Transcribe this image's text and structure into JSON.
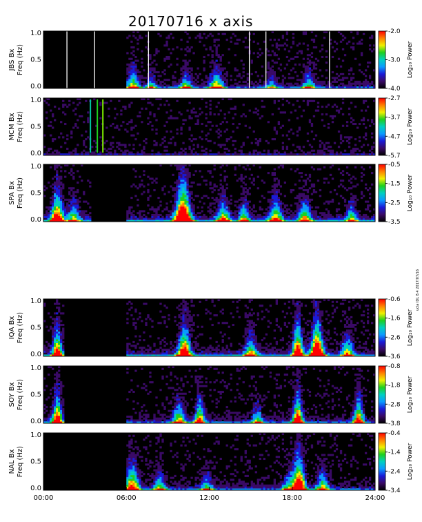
{
  "title": "20170716 x axis",
  "credit": "ucla IDL 8.4 2017/07/16",
  "colorbar_label": "Log₁₀ Power",
  "x_axis": {
    "ticks": [
      "00:00",
      "06:00",
      "12:00",
      "18:00",
      "24:00"
    ],
    "range_hours": [
      0,
      24
    ]
  },
  "colormap": [
    "#000000",
    "#3a0a66",
    "#1a1ad8",
    "#0a9aff",
    "#00d0c0",
    "#1ed01e",
    "#f0f000",
    "#ff8000",
    "#ff0000"
  ],
  "chart_data": [
    {
      "type": "heatmap",
      "station": "JBS",
      "ylabel": "JBS Bx",
      "ylabel2": "Freq (Hz)",
      "y_ticks": [
        "0.0",
        "0.5",
        "1.0"
      ],
      "ylim": [
        0,
        1
      ],
      "colorbar": {
        "min": -4.0,
        "max": -2.0,
        "ticks": [
          "-2.0",
          "-3.0",
          "-4.0"
        ]
      },
      "gaps_hours": [
        0,
        6
      ],
      "background_level": 0.12,
      "bursts": [
        {
          "t": 6.5,
          "width": 0.5,
          "amp": 0.55
        },
        {
          "t": 7.8,
          "width": 0.4,
          "amp": 0.4
        },
        {
          "t": 10.3,
          "width": 0.5,
          "amp": 0.45
        },
        {
          "t": 12.5,
          "width": 0.6,
          "amp": 0.55
        },
        {
          "t": 16.5,
          "width": 0.5,
          "amp": 0.35
        },
        {
          "t": 19.2,
          "width": 0.5,
          "amp": 0.45
        }
      ],
      "data_gaps_lines_hours": [
        1.7,
        3.7,
        7.6,
        14.9,
        16.1,
        20.7
      ]
    },
    {
      "type": "heatmap",
      "station": "MCM",
      "ylabel": "MCM Bx",
      "ylabel2": "Freq (Hz)",
      "y_ticks": [
        "0.0",
        "0.5",
        "1.0"
      ],
      "ylim": [
        0,
        1
      ],
      "colorbar": {
        "min": -5.7,
        "max": -2.7,
        "ticks": [
          "-2.7",
          "-3.7",
          "-4.7",
          "-5.7"
        ]
      },
      "gaps_hours": [],
      "background_level": 0.06,
      "bursts": [],
      "spike_lines": [
        {
          "t": 3.4,
          "color": "#00c8a0"
        },
        {
          "t": 3.9,
          "color": "#1ed01e"
        },
        {
          "t": 4.3,
          "color": "#7ff000"
        }
      ]
    },
    {
      "type": "heatmap",
      "station": "SPA",
      "ylabel": "SPA Bx",
      "ylabel2": "Freq (Hz)",
      "y_ticks": [
        "0.0",
        "0.5",
        "1.0"
      ],
      "ylim": [
        0,
        1
      ],
      "colorbar": {
        "min": -3.5,
        "max": -0.5,
        "ticks": [
          "-0.5",
          "-1.5",
          "-2.5",
          "-3.5"
        ]
      },
      "gaps_hours": [
        3.5,
        6
      ],
      "background_level": 0.22,
      "bursts": [
        {
          "t": 1.0,
          "width": 0.5,
          "amp": 0.75
        },
        {
          "t": 2.2,
          "width": 0.4,
          "amp": 0.45
        },
        {
          "t": 10.1,
          "width": 0.6,
          "amp": 1.0
        },
        {
          "t": 13.0,
          "width": 0.5,
          "amp": 0.5
        },
        {
          "t": 14.5,
          "width": 0.4,
          "amp": 0.45
        },
        {
          "t": 16.8,
          "width": 0.5,
          "amp": 0.55
        },
        {
          "t": 18.9,
          "width": 0.5,
          "amp": 0.5
        },
        {
          "t": 22.3,
          "width": 0.4,
          "amp": 0.4
        }
      ]
    },
    {
      "type": "heatmap",
      "station": "IQA",
      "ylabel": "IQA Bx",
      "ylabel2": "Freq (Hz)",
      "y_ticks": [
        "0.0",
        "0.5",
        "1.0"
      ],
      "ylim": [
        0,
        1
      ],
      "colorbar": {
        "min": -3.6,
        "max": -0.6,
        "ticks": [
          "-0.6",
          "-1.6",
          "-2.6",
          "-3.6"
        ]
      },
      "gaps_hours": [
        1.5,
        6
      ],
      "background_level": 0.2,
      "bursts": [
        {
          "t": 1.0,
          "width": 0.4,
          "amp": 0.7
        },
        {
          "t": 10.2,
          "width": 0.5,
          "amp": 0.8
        },
        {
          "t": 15.0,
          "width": 0.5,
          "amp": 0.5
        },
        {
          "t": 18.4,
          "width": 0.4,
          "amp": 0.85
        },
        {
          "t": 19.8,
          "width": 0.5,
          "amp": 0.95
        },
        {
          "t": 22.0,
          "width": 0.5,
          "amp": 0.5
        }
      ]
    },
    {
      "type": "heatmap",
      "station": "SOY",
      "ylabel": "SOY Bx",
      "ylabel2": "Freq (Hz)",
      "y_ticks": [
        "0.0",
        "0.5",
        "1.0"
      ],
      "ylim": [
        0,
        1
      ],
      "colorbar": {
        "min": -3.8,
        "max": -0.8,
        "ticks": [
          "-0.8",
          "-1.8",
          "-2.8",
          "-3.8"
        ]
      },
      "gaps_hours": [
        1.5,
        6
      ],
      "background_level": 0.16,
      "bursts": [
        {
          "t": 1.0,
          "width": 0.4,
          "amp": 0.8
        },
        {
          "t": 9.8,
          "width": 0.5,
          "amp": 0.55
        },
        {
          "t": 11.3,
          "width": 0.4,
          "amp": 0.65
        },
        {
          "t": 15.5,
          "width": 0.4,
          "amp": 0.45
        },
        {
          "t": 18.4,
          "width": 0.4,
          "amp": 0.8
        },
        {
          "t": 22.8,
          "width": 0.4,
          "amp": 0.7
        }
      ]
    },
    {
      "type": "heatmap",
      "station": "NAL",
      "ylabel": "NAL Bx",
      "ylabel2": "Freq (Hz)",
      "y_ticks": [
        "0.0",
        "0.5",
        "1.0"
      ],
      "ylim": [
        0,
        1
      ],
      "colorbar": {
        "min": -3.4,
        "max": -0.4,
        "ticks": [
          "-0.4",
          "-1.4",
          "-2.4",
          "-3.4"
        ]
      },
      "gaps_hours": [
        0,
        6
      ],
      "background_level": 0.16,
      "bursts": [
        {
          "t": 6.4,
          "width": 0.6,
          "amp": 0.7
        },
        {
          "t": 8.4,
          "width": 0.5,
          "amp": 0.45
        },
        {
          "t": 11.8,
          "width": 0.5,
          "amp": 0.4
        },
        {
          "t": 17.7,
          "width": 0.5,
          "amp": 0.35
        },
        {
          "t": 18.5,
          "width": 0.5,
          "amp": 0.9
        },
        {
          "t": 20.2,
          "width": 0.5,
          "amp": 0.5
        }
      ]
    }
  ]
}
